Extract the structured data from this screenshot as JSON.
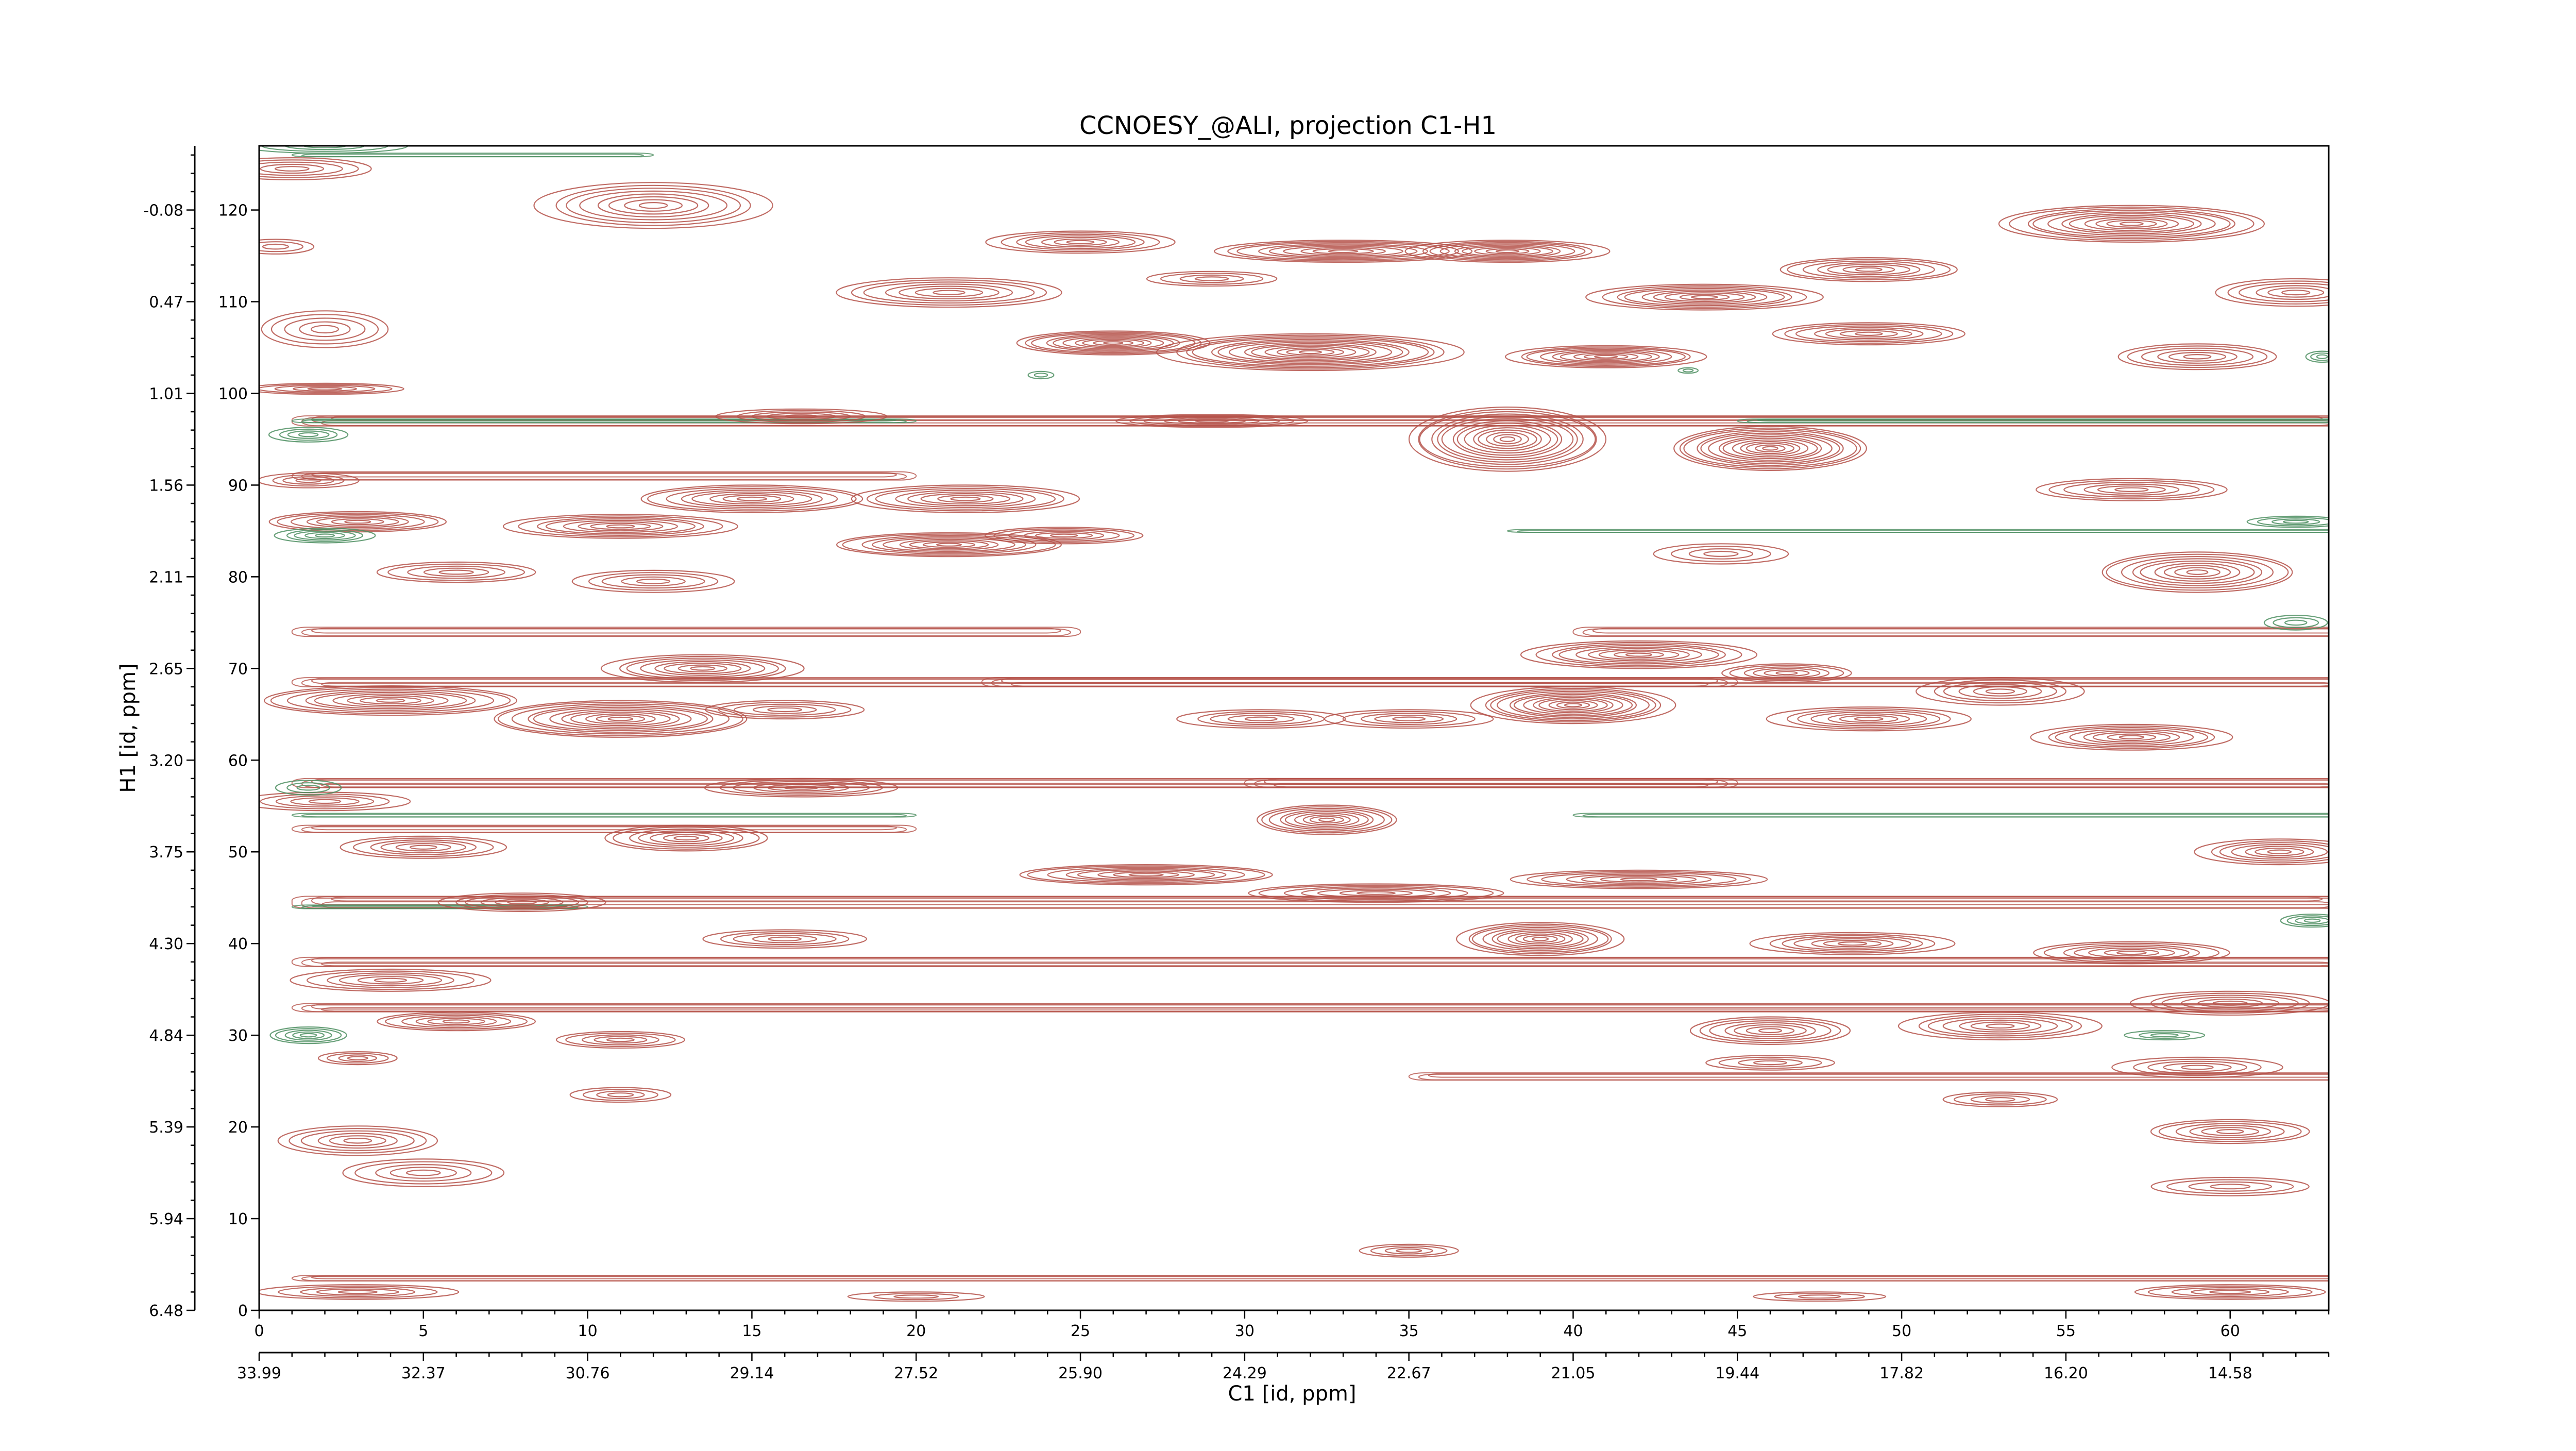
{
  "chart_data": {
    "type": "contour",
    "title": "CCNOESY_@ALI, projection C1-H1",
    "xlabel": "C1 [id, ppm]",
    "ylabel": "H1 [id, ppm]",
    "x_index_range": [
      0,
      63
    ],
    "y_index_range": [
      0,
      127
    ],
    "x_index_ticks": [
      "0",
      "5",
      "10",
      "15",
      "20",
      "25",
      "30",
      "35",
      "40",
      "45",
      "50",
      "55",
      "60"
    ],
    "x_ppm_ticks": [
      "33.99",
      "32.37",
      "30.76",
      "29.14",
      "27.52",
      "25.90",
      "24.29",
      "22.67",
      "21.05",
      "19.44",
      "17.82",
      "16.20",
      "14.58"
    ],
    "y_index_ticks": [
      "0",
      "10",
      "20",
      "30",
      "40",
      "50",
      "60",
      "70",
      "80",
      "90",
      "100",
      "110",
      "120"
    ],
    "y_ppm_ticks": [
      "6.48",
      "5.94",
      "5.39",
      "4.84",
      "4.30",
      "3.75",
      "3.20",
      "2.65",
      "2.11",
      "1.56",
      "1.01",
      "0.47",
      "-0.08"
    ],
    "colors": {
      "positive": "#b5524a",
      "negative": "#4e8f62"
    },
    "positive_peaks": [
      [
        1,
        124.5,
        2.5,
        1.2,
        5
      ],
      [
        12,
        120.5,
        3.5,
        2.5,
        8
      ],
      [
        0.5,
        116,
        1.2,
        0.8,
        3
      ],
      [
        25,
        116.5,
        2.8,
        1.2,
        7
      ],
      [
        29,
        112.5,
        2,
        0.8,
        4
      ],
      [
        21,
        111,
        3.5,
        1.6,
        7
      ],
      [
        33,
        115.5,
        4,
        1.2,
        9
      ],
      [
        38,
        115.5,
        3,
        1.2,
        9
      ],
      [
        49,
        113.5,
        2.8,
        1.3,
        7
      ],
      [
        57,
        118.5,
        4,
        2,
        11
      ],
      [
        62,
        111,
        2.5,
        1.5,
        6
      ],
      [
        2,
        107,
        2,
        2,
        5
      ],
      [
        26,
        105.5,
        3,
        1.3,
        10
      ],
      [
        32,
        104.5,
        4.5,
        2,
        13
      ],
      [
        41,
        104,
        3,
        1.2,
        9
      ],
      [
        44,
        110.5,
        3.5,
        1.4,
        9
      ],
      [
        49,
        106.5,
        3,
        1.2,
        7
      ],
      [
        59,
        104,
        2.5,
        1.4,
        6
      ],
      [
        38,
        95,
        3,
        3.5,
        14
      ],
      [
        46,
        94,
        3,
        2.4,
        13
      ],
      [
        16.5,
        97.5,
        2.5,
        0.8,
        5
      ],
      [
        29,
        97,
        3,
        0.7,
        6
      ],
      [
        2,
        100.5,
        2.5,
        0.6,
        5
      ],
      [
        3,
        86,
        2.8,
        1.1,
        7
      ],
      [
        11,
        85.5,
        3.5,
        1.3,
        8
      ],
      [
        15,
        88.5,
        3.5,
        1.5,
        8
      ],
      [
        21.5,
        88.5,
        3.5,
        1.5,
        8
      ],
      [
        21,
        83.5,
        3.5,
        1.3,
        9
      ],
      [
        24.5,
        84.5,
        2.5,
        0.9,
        6
      ],
      [
        6,
        80.5,
        2.5,
        1.1,
        5
      ],
      [
        12,
        79.5,
        2.5,
        1.2,
        5
      ],
      [
        59,
        80.5,
        3,
        2.2,
        9
      ],
      [
        57,
        89.5,
        3,
        1.2,
        6
      ],
      [
        44.5,
        82.5,
        2,
        1.1,
        4
      ],
      [
        13.5,
        70,
        3,
        1.5,
        8
      ],
      [
        4,
        66.5,
        4,
        1.6,
        9
      ],
      [
        11,
        64.5,
        4,
        2,
        11
      ],
      [
        16,
        65.5,
        2.5,
        1,
        5
      ],
      [
        30.5,
        64.5,
        2.5,
        1,
        5
      ],
      [
        35,
        64.5,
        2.5,
        1,
        5
      ],
      [
        40,
        66,
        3,
        2,
        12
      ],
      [
        42,
        71.5,
        3.5,
        1.5,
        9
      ],
      [
        46.5,
        69.5,
        2,
        1,
        6
      ],
      [
        49,
        64.5,
        3,
        1.3,
        7
      ],
      [
        53,
        67.5,
        2.5,
        1.5,
        6
      ],
      [
        57,
        62.5,
        3,
        1.4,
        8
      ],
      [
        2,
        55.5,
        2.5,
        1,
        5
      ],
      [
        16.5,
        57,
        3,
        1,
        6
      ],
      [
        13,
        51.5,
        2.5,
        1.4,
        7
      ],
      [
        5,
        50.5,
        2.5,
        1.2,
        6
      ],
      [
        32.5,
        53.5,
        2.2,
        1.6,
        9
      ],
      [
        27,
        47.5,
        4,
        1.1,
        8
      ],
      [
        34,
        45.5,
        4,
        1,
        7
      ],
      [
        42,
        47,
        4,
        1,
        7
      ],
      [
        61.5,
        50,
        2.5,
        1.4,
        7
      ],
      [
        8,
        44.5,
        2.5,
        1,
        6
      ],
      [
        16,
        40.5,
        2.5,
        1,
        5
      ],
      [
        39,
        40.5,
        2.5,
        1.8,
        10
      ],
      [
        48.5,
        40,
        3,
        1.2,
        7
      ],
      [
        57,
        39,
        3,
        1.2,
        7
      ],
      [
        4,
        36,
        3,
        1.2,
        6
      ],
      [
        6,
        31.5,
        2.5,
        1,
        6
      ],
      [
        11,
        29.5,
        2,
        0.9,
        5
      ],
      [
        3,
        27.5,
        1.2,
        0.7,
        4
      ],
      [
        46,
        30.5,
        2.5,
        1.5,
        7
      ],
      [
        53,
        31,
        3,
        1.5,
        7
      ],
      [
        60,
        33.5,
        3,
        1.3,
        6
      ],
      [
        46,
        27,
        2,
        0.8,
        4
      ],
      [
        59,
        26.5,
        2.5,
        1.1,
        5
      ],
      [
        3,
        18.5,
        2.5,
        1.6,
        6
      ],
      [
        11,
        23.5,
        1.5,
        0.8,
        4
      ],
      [
        53,
        23,
        1.8,
        0.8,
        4
      ],
      [
        60,
        19.5,
        2.5,
        1.3,
        6
      ],
      [
        5,
        15,
        2.5,
        1.5,
        5
      ],
      [
        35,
        6.5,
        1.5,
        0.7,
        4
      ],
      [
        60,
        13.5,
        2.5,
        1,
        4
      ],
      [
        3,
        2,
        3,
        0.8,
        5
      ],
      [
        60,
        2,
        3,
        0.8,
        5
      ],
      [
        20,
        1.5,
        2,
        0.5,
        3
      ],
      [
        47.5,
        1.5,
        2,
        0.5,
        3
      ],
      [
        1.5,
        90.5,
        1.5,
        0.8,
        4
      ]
    ],
    "negative_peaks": [
      [
        2,
        127,
        2.5,
        0.8,
        4
      ],
      [
        2,
        84.5,
        1.5,
        0.8,
        5
      ],
      [
        1.5,
        95.5,
        1.2,
        0.8,
        4
      ],
      [
        1.5,
        30,
        1.2,
        0.9,
        5
      ],
      [
        62,
        86,
        1.5,
        0.6,
        4
      ],
      [
        62.5,
        42.5,
        1,
        0.7,
        4
      ],
      [
        62,
        75,
        1,
        0.8,
        3
      ],
      [
        1.5,
        57,
        1,
        0.8,
        3
      ],
      [
        23.8,
        102,
        0.4,
        0.4,
        2
      ],
      [
        62.8,
        104,
        0.5,
        0.6,
        3
      ],
      [
        43.5,
        102.5,
        0.3,
        0.3,
        2
      ],
      [
        58,
        30,
        1.2,
        0.5,
        3
      ]
    ],
    "positive_ridges": [
      [
        1,
        64,
        97,
        1.1,
        0.5,
        5
      ],
      [
        1,
        64,
        44.5,
        1.3,
        0.6,
        5
      ],
      [
        1,
        64,
        33,
        0.9,
        0.4,
        4
      ],
      [
        1,
        45,
        68.5,
        1,
        0.5,
        4
      ],
      [
        22,
        64,
        68.5,
        1,
        0.5,
        4
      ],
      [
        1,
        25,
        74,
        1,
        0.4,
        3
      ],
      [
        40,
        64,
        74,
        1,
        0.4,
        3
      ],
      [
        1,
        45,
        57.5,
        1,
        0.5,
        4
      ],
      [
        30,
        64,
        57.5,
        1,
        0.5,
        4
      ],
      [
        1,
        20,
        91,
        0.9,
        0.4,
        3
      ],
      [
        1,
        64,
        38,
        1,
        0.5,
        4
      ],
      [
        1,
        20,
        52.5,
        0.8,
        0.4,
        3
      ],
      [
        35,
        64,
        25.5,
        0.8,
        0.4,
        3
      ],
      [
        1,
        64,
        3.5,
        0.6,
        0.3,
        3
      ]
    ],
    "negative_ridges": [
      [
        1,
        20,
        97,
        0.4,
        0.3,
        3
      ],
      [
        45,
        64,
        97,
        0.4,
        0.3,
        3
      ],
      [
        1,
        10,
        44,
        0.4,
        0.3,
        3
      ],
      [
        1,
        20,
        54,
        0.4,
        0.3,
        2
      ],
      [
        40,
        64,
        54,
        0.4,
        0.3,
        2
      ],
      [
        38,
        64,
        85,
        0.3,
        0.3,
        2
      ],
      [
        1,
        12,
        126,
        0.4,
        0.3,
        2
      ]
    ]
  }
}
